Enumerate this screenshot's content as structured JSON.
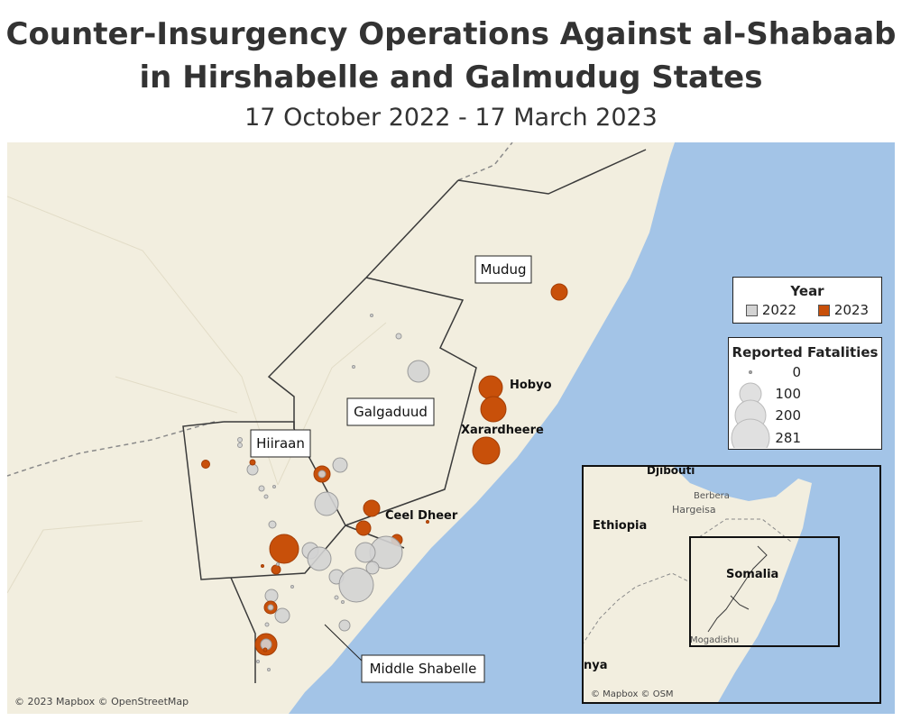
{
  "title_line1": "Counter-Insurgency Operations Against al-Shabaab",
  "title_line2": "in Hirshabelle and Galmudug States",
  "subtitle": "17 October 2022 - 17 March 2023",
  "colors": {
    "land": "#f2eedf",
    "water": "#a3c4e7",
    "year_2022": "#d3d3d3",
    "year_2023": "#c8500a",
    "border": "#3a3a3a"
  },
  "regions": [
    "Mudug",
    "Galgaduud",
    "Hiiraan",
    "Middle Shabelle"
  ],
  "towns": [
    "Hobyo",
    "Xarardheere",
    "Ceel Dheer"
  ],
  "legend_year": {
    "title": "Year",
    "items": [
      "2022",
      "2023"
    ]
  },
  "legend_size": {
    "title": "Reported Fatalities",
    "values": [
      "0",
      "100",
      "200",
      "281"
    ]
  },
  "inset": {
    "labels": [
      "Djibouti",
      "Berbera",
      "Hargeisa",
      "Ethiopia",
      "Somalia",
      "Mogadishu",
      "nya"
    ],
    "credit": "© Mapbox © OSM"
  },
  "credit": "© 2023 Mapbox © OpenStreetMap"
}
